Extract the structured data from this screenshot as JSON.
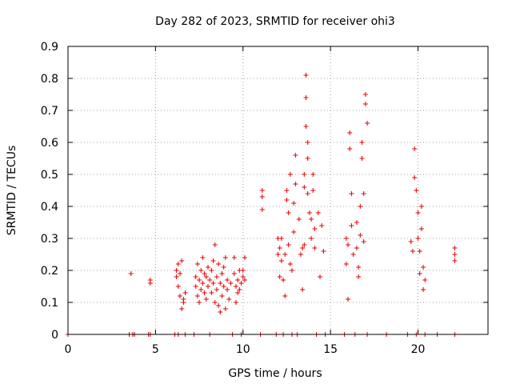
{
  "chart_data": {
    "type": "scatter",
    "title": "Day 282 of 2023, SRMTID for receiver ohi3",
    "xlabel": "GPS time / hours",
    "ylabel": "SRMTID / TECUs",
    "xlim": [
      0,
      24
    ],
    "ylim": [
      0,
      0.9
    ],
    "xticks": [
      0,
      5,
      10,
      15,
      20
    ],
    "yticks": [
      0,
      0.1,
      0.2,
      0.3,
      0.4,
      0.5,
      0.6,
      0.7,
      0.8,
      0.9
    ],
    "grid": true,
    "marker": "+",
    "color": "#e00000",
    "series": [
      {
        "name": "SRMTID",
        "points": [
          [
            0.0,
            0.0
          ],
          [
            3.5,
            0.0
          ],
          [
            3.6,
            0.19
          ],
          [
            3.7,
            0.0
          ],
          [
            3.8,
            0.0
          ],
          [
            4.6,
            0.0
          ],
          [
            4.7,
            0.17
          ],
          [
            4.7,
            0.16
          ],
          [
            4.7,
            0.0
          ],
          [
            6.1,
            0.0
          ],
          [
            6.2,
            0.2
          ],
          [
            6.2,
            0.18
          ],
          [
            6.3,
            0.22
          ],
          [
            6.3,
            0.15
          ],
          [
            6.3,
            0.0
          ],
          [
            6.4,
            0.19
          ],
          [
            6.4,
            0.12
          ],
          [
            6.5,
            0.23
          ],
          [
            6.5,
            0.08
          ],
          [
            6.6,
            0.11
          ],
          [
            6.6,
            0.1
          ],
          [
            6.7,
            0.13
          ],
          [
            6.7,
            0.0
          ],
          [
            7.2,
            0.0
          ],
          [
            7.3,
            0.18
          ],
          [
            7.3,
            0.15
          ],
          [
            7.4,
            0.22
          ],
          [
            7.4,
            0.12
          ],
          [
            7.5,
            0.17
          ],
          [
            7.5,
            0.1
          ],
          [
            7.6,
            0.2
          ],
          [
            7.6,
            0.14
          ],
          [
            7.7,
            0.24
          ],
          [
            7.7,
            0.16
          ],
          [
            7.8,
            0.13
          ],
          [
            7.8,
            0.19
          ],
          [
            7.9,
            0.18
          ],
          [
            7.9,
            0.11
          ],
          [
            8.0,
            0.21
          ],
          [
            8.0,
            0.15
          ],
          [
            8.1,
            0.17
          ],
          [
            8.1,
            0.0
          ],
          [
            8.2,
            0.2
          ],
          [
            8.2,
            0.13
          ],
          [
            8.3,
            0.16
          ],
          [
            8.3,
            0.23
          ],
          [
            8.4,
            0.28
          ],
          [
            8.4,
            0.1
          ],
          [
            8.5,
            0.18
          ],
          [
            8.5,
            0.14
          ],
          [
            8.6,
            0.22
          ],
          [
            8.6,
            0.09
          ],
          [
            8.7,
            0.07
          ],
          [
            8.7,
            0.16
          ],
          [
            8.8,
            0.19
          ],
          [
            8.8,
            0.12
          ],
          [
            8.9,
            0.15
          ],
          [
            8.9,
            0.21
          ],
          [
            9.0,
            0.24
          ],
          [
            9.0,
            0.08
          ],
          [
            9.1,
            0.14
          ],
          [
            9.1,
            0.17
          ],
          [
            9.2,
            0.11
          ],
          [
            9.3,
            0.16
          ],
          [
            9.4,
            0.0
          ],
          [
            9.5,
            0.24
          ],
          [
            9.5,
            0.19
          ],
          [
            9.6,
            0.15
          ],
          [
            9.6,
            0.1
          ],
          [
            9.7,
            0.17
          ],
          [
            9.7,
            0.13
          ],
          [
            9.8,
            0.2
          ],
          [
            9.8,
            0.14
          ],
          [
            9.9,
            0.16
          ],
          [
            9.9,
            0.0
          ],
          [
            10.0,
            0.18
          ],
          [
            10.0,
            0.2
          ],
          [
            10.1,
            0.24
          ],
          [
            10.1,
            0.17
          ],
          [
            11.0,
            0.0
          ],
          [
            11.1,
            0.45
          ],
          [
            11.1,
            0.43
          ],
          [
            11.1,
            0.39
          ],
          [
            11.9,
            0.0
          ],
          [
            12.0,
            0.3
          ],
          [
            12.0,
            0.25
          ],
          [
            12.1,
            0.27
          ],
          [
            12.1,
            0.18
          ],
          [
            12.2,
            0.23
          ],
          [
            12.2,
            0.3
          ],
          [
            12.3,
            0.17
          ],
          [
            12.3,
            0.0
          ],
          [
            12.4,
            0.25
          ],
          [
            12.4,
            0.12
          ],
          [
            12.5,
            0.45
          ],
          [
            12.5,
            0.42
          ],
          [
            12.6,
            0.38
          ],
          [
            12.6,
            0.28
          ],
          [
            12.7,
            0.5
          ],
          [
            12.7,
            0.22
          ],
          [
            12.8,
            0.2
          ],
          [
            12.8,
            0.0
          ],
          [
            12.9,
            0.41
          ],
          [
            12.9,
            0.32
          ],
          [
            13.0,
            0.56
          ],
          [
            13.0,
            0.47
          ],
          [
            13.1,
            0.0
          ],
          [
            13.2,
            0.36
          ],
          [
            13.3,
            0.25
          ],
          [
            13.4,
            0.14
          ],
          [
            13.4,
            0.27
          ],
          [
            13.5,
            0.5
          ],
          [
            13.5,
            0.46
          ],
          [
            13.5,
            0.28
          ],
          [
            13.6,
            0.81
          ],
          [
            13.6,
            0.74
          ],
          [
            13.6,
            0.65
          ],
          [
            13.7,
            0.6
          ],
          [
            13.7,
            0.55
          ],
          [
            13.7,
            0.44
          ],
          [
            13.8,
            0.38
          ],
          [
            13.9,
            0.36
          ],
          [
            13.9,
            0.3
          ],
          [
            14.0,
            0.5
          ],
          [
            14.0,
            0.45
          ],
          [
            14.1,
            0.33
          ],
          [
            14.1,
            0.27
          ],
          [
            14.2,
            0.0
          ],
          [
            14.3,
            0.38
          ],
          [
            14.4,
            0.18
          ],
          [
            14.5,
            0.34
          ],
          [
            14.6,
            0.26
          ],
          [
            14.7,
            0.0
          ],
          [
            15.8,
            0.0
          ],
          [
            15.9,
            0.3
          ],
          [
            15.9,
            0.22
          ],
          [
            16.0,
            0.28
          ],
          [
            16.0,
            0.11
          ],
          [
            16.1,
            0.63
          ],
          [
            16.1,
            0.58
          ],
          [
            16.2,
            0.44
          ],
          [
            16.2,
            0.34
          ],
          [
            16.3,
            0.25
          ],
          [
            16.4,
            0.0
          ],
          [
            16.5,
            0.35
          ],
          [
            16.5,
            0.27
          ],
          [
            16.6,
            0.21
          ],
          [
            16.6,
            0.18
          ],
          [
            16.7,
            0.4
          ],
          [
            16.7,
            0.31
          ],
          [
            16.8,
            0.6
          ],
          [
            16.8,
            0.55
          ],
          [
            16.9,
            0.44
          ],
          [
            16.9,
            0.29
          ],
          [
            17.0,
            0.75
          ],
          [
            17.0,
            0.72
          ],
          [
            17.1,
            0.66
          ],
          [
            17.1,
            0.0
          ],
          [
            18.2,
            0.0
          ],
          [
            19.4,
            0.0
          ],
          [
            19.6,
            0.29
          ],
          [
            19.7,
            0.26
          ],
          [
            19.8,
            0.58
          ],
          [
            19.8,
            0.49
          ],
          [
            19.9,
            0.45
          ],
          [
            19.9,
            0.0
          ],
          [
            20.0,
            0.38
          ],
          [
            20.0,
            0.3
          ],
          [
            20.1,
            0.26
          ],
          [
            20.1,
            0.19
          ],
          [
            20.2,
            0.4
          ],
          [
            20.2,
            0.33
          ],
          [
            20.3,
            0.21
          ],
          [
            20.3,
            0.14
          ],
          [
            20.4,
            0.17
          ],
          [
            20.4,
            0.0
          ],
          [
            21.1,
            0.0
          ],
          [
            22.1,
            0.27
          ],
          [
            22.1,
            0.25
          ],
          [
            22.1,
            0.23
          ],
          [
            22.1,
            0.0
          ]
        ]
      }
    ]
  }
}
